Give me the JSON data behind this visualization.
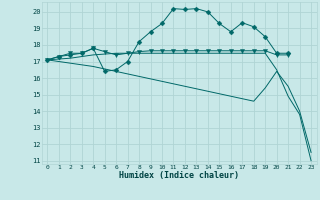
{
  "bg_color": "#c8e8e8",
  "grid_color": "#b0d4d4",
  "line_color": "#006868",
  "xlabel": "Humidex (Indice chaleur)",
  "xlim": [
    -0.5,
    23.5
  ],
  "ylim": [
    10.8,
    20.6
  ],
  "yticks": [
    11,
    12,
    13,
    14,
    15,
    16,
    17,
    18,
    19,
    20
  ],
  "xticks": [
    0,
    1,
    2,
    3,
    4,
    5,
    6,
    7,
    8,
    9,
    10,
    11,
    12,
    13,
    14,
    15,
    16,
    17,
    18,
    19,
    20,
    21,
    22,
    23
  ],
  "series": [
    {
      "x": [
        0,
        1,
        2,
        3,
        4,
        5,
        6,
        7,
        8,
        9,
        10,
        11,
        12,
        13,
        14,
        15,
        16,
        17,
        18,
        19,
        20,
        21
      ],
      "y": [
        17.1,
        17.3,
        17.4,
        17.5,
        17.8,
        16.4,
        16.5,
        17.0,
        18.2,
        18.8,
        19.3,
        20.2,
        20.15,
        20.2,
        20.0,
        19.3,
        18.8,
        19.35,
        19.1,
        18.5,
        17.5,
        17.5
      ],
      "marker": "D",
      "markersize": 2.5
    },
    {
      "x": [
        0,
        1,
        2,
        3,
        4,
        5,
        6,
        7,
        8,
        9,
        10,
        11,
        12,
        13,
        14,
        15,
        16,
        17,
        18,
        19,
        20,
        21
      ],
      "y": [
        17.1,
        17.3,
        17.5,
        17.5,
        17.8,
        17.6,
        17.4,
        17.5,
        17.6,
        17.65,
        17.65,
        17.65,
        17.65,
        17.65,
        17.65,
        17.65,
        17.65,
        17.65,
        17.65,
        17.65,
        17.4,
        17.4
      ],
      "marker": "v",
      "markersize": 3
    },
    {
      "x": [
        0,
        1,
        2,
        3,
        4,
        5,
        6,
        7,
        8,
        9,
        10,
        11,
        12,
        13,
        14,
        15,
        16,
        17,
        18,
        19,
        20,
        21,
        22,
        23
      ],
      "y": [
        17.1,
        17.0,
        16.9,
        16.8,
        16.7,
        16.55,
        16.4,
        16.25,
        16.1,
        15.95,
        15.8,
        15.65,
        15.5,
        15.35,
        15.2,
        15.05,
        14.9,
        14.75,
        14.6,
        15.4,
        16.4,
        15.5,
        14.0,
        11.5
      ],
      "marker": null,
      "markersize": 0
    },
    {
      "x": [
        0,
        1,
        2,
        3,
        4,
        5,
        6,
        7,
        8,
        9,
        10,
        11,
        12,
        13,
        14,
        15,
        16,
        17,
        18,
        19,
        20,
        21,
        22,
        23
      ],
      "y": [
        17.1,
        17.15,
        17.2,
        17.3,
        17.4,
        17.45,
        17.5,
        17.5,
        17.5,
        17.5,
        17.5,
        17.5,
        17.5,
        17.5,
        17.5,
        17.5,
        17.5,
        17.5,
        17.5,
        17.5,
        16.5,
        14.9,
        13.8,
        11.0
      ],
      "marker": null,
      "markersize": 0
    }
  ]
}
